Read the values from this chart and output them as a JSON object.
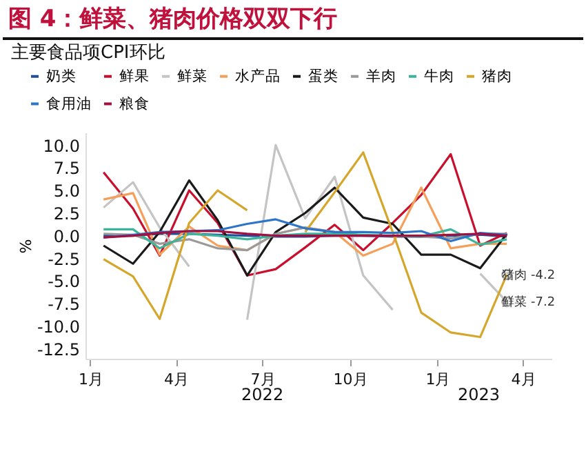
{
  "chart_data": {
    "type": "line",
    "title": "图 4：鲜菜、猪肉价格双双下行",
    "subtitle": "主要食品项CPI环比",
    "ylabel": "%",
    "x": [
      "2022-01-15",
      "2022-02-15",
      "2022-03-15",
      "2022-04-15",
      "2022-05-15",
      "2022-06-15",
      "2022-07-15",
      "2022-08-15",
      "2022-09-15",
      "2022-10-15",
      "2022-11-15",
      "2022-12-15",
      "2023-01-15",
      "2023-02-15",
      "2023-03-15"
    ],
    "xlim": [
      "2021-12-27",
      "2023-05-01"
    ],
    "xticks": [
      {
        "value": "2022-01-01",
        "label": "1月"
      },
      {
        "value": "2022-04-01",
        "label": "4月"
      },
      {
        "value": "2022-07-01",
        "label": "7月"
      },
      {
        "value": "2022-10-01",
        "label": "10月"
      },
      {
        "value": "2023-01-01",
        "label": "1月"
      },
      {
        "value": "2023-04-01",
        "label": "4月"
      }
    ],
    "ylim": [
      -13.5,
      11.5
    ],
    "yticks": [
      -12.5,
      {
        "value": -10,
        "label": "-10.0"
      },
      -7.5,
      {
        "value": -5,
        "label": "-5.0"
      },
      -2.5,
      {
        "value": 0,
        "label": "0.0"
      },
      2.5,
      {
        "value": 5,
        "label": "5.0"
      },
      7.5,
      {
        "value": 10,
        "label": "10.0"
      }
    ],
    "grid": false,
    "legend": "top",
    "marker": "none",
    "line_style": "solid",
    "series": [
      {
        "name": "奶类",
        "color": "#1f4e9c",
        "values": [
          0.1,
          0.1,
          0.3,
          0.3,
          0.2,
          0.1,
          0.0,
          0.0,
          0.1,
          0.1,
          0.0,
          0.0,
          0.1,
          0.2,
          0.0
        ]
      },
      {
        "name": "鲜果",
        "color": "#c8102e",
        "values": [
          7.1,
          3.1,
          -2.1,
          5.1,
          1.5,
          -4.3,
          -3.6,
          -1.2,
          1.3,
          -1.5,
          1.5,
          4.6,
          9.1,
          -1.0,
          0.4
        ]
      },
      {
        "name": "鲜菜",
        "color": "#c4c4c4",
        "values": [
          3.2,
          6.0,
          1.0,
          -3.3,
          null,
          -9.2,
          10.1,
          2.0,
          6.6,
          -4.3,
          -8.1,
          null,
          null,
          -4.1,
          -7.2
        ]
      },
      {
        "name": "水产品",
        "color": "#f5a05a",
        "values": [
          4.1,
          4.8,
          -2.0,
          1.1,
          -1.0,
          -1.5,
          0.3,
          1.0,
          0.5,
          -2.1,
          -0.8,
          5.4,
          -1.3,
          -0.8,
          -0.8
        ]
      },
      {
        "name": "蛋类",
        "color": "#1a1a1a",
        "values": [
          -1.0,
          -3.0,
          0.5,
          6.2,
          1.8,
          -4.3,
          0.5,
          2.6,
          5.4,
          2.1,
          1.4,
          -2.0,
          -2.0,
          -3.5,
          0.3
        ]
      },
      {
        "name": "羊肉",
        "color": "#9a9a9a",
        "values": [
          0.3,
          0.2,
          -0.8,
          -0.3,
          -1.3,
          -1.5,
          0.3,
          1.0,
          0.5,
          0.1,
          0.1,
          0.0,
          -0.2,
          0.3,
          0.3
        ]
      },
      {
        "name": "牛肉",
        "color": "#3cb39a",
        "values": [
          0.8,
          0.8,
          -1.3,
          0.3,
          0.1,
          -0.3,
          0.1,
          0.3,
          0.3,
          0.2,
          0.1,
          0.0,
          0.8,
          -0.9,
          -0.3
        ]
      },
      {
        "name": "猪肉",
        "color": "#d4a72c",
        "values": [
          -2.5,
          -4.4,
          -9.1,
          1.5,
          5.1,
          2.9,
          null,
          0.5,
          4.9,
          9.3,
          0.5,
          -8.4,
          -10.6,
          -11.1,
          -4.2
        ]
      },
      {
        "name": "食用油",
        "color": "#2e75c8",
        "values": [
          -0.1,
          0.2,
          0.5,
          0.6,
          0.7,
          1.4,
          1.9,
          0.9,
          0.5,
          0.5,
          0.4,
          0.6,
          -0.5,
          0.4,
          0.2
        ]
      },
      {
        "name": "粮食",
        "color": "#a01040",
        "values": [
          -0.1,
          0.1,
          0.4,
          0.6,
          0.6,
          0.3,
          0.1,
          0.1,
          0.1,
          0.1,
          0.1,
          0.1,
          0.2,
          0.3,
          0.1
        ]
      }
    ],
    "annotations": [
      {
        "text": "猪肉 -4.2",
        "x": "2023-03-15",
        "y": -4.2
      },
      {
        "text": "鲜菜 -7.2",
        "x": "2023-03-15",
        "y": -7.2
      },
      "2022",
      "2023"
    ]
  }
}
